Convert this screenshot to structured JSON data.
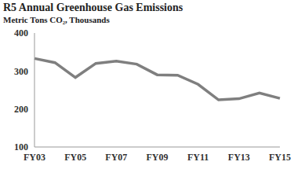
{
  "chart_data": {
    "type": "line",
    "title": "R5 Annual Greenhouse Gas Emissions",
    "subtitle": "Metric Tons CO₂, Thousands",
    "categories": [
      "FY03",
      null,
      "FY05",
      null,
      "FY07",
      null,
      "FY09",
      null,
      "FY11",
      null,
      "FY13",
      null,
      "FY15"
    ],
    "values": [
      333,
      322,
      283,
      320,
      326,
      318,
      290,
      289,
      265,
      224,
      227,
      242,
      228
    ],
    "color": "#7f7f7f",
    "ylim": [
      100,
      400
    ],
    "yticks": [
      100,
      200,
      300,
      400
    ],
    "grid": false
  }
}
